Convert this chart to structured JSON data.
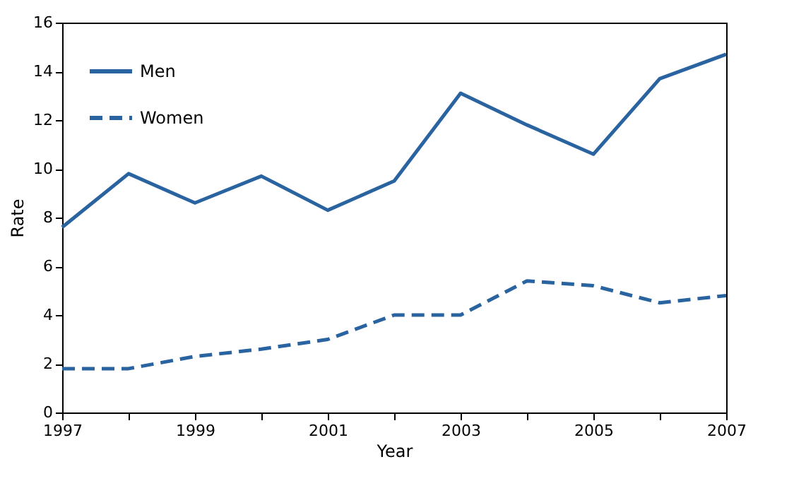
{
  "chart_data": {
    "type": "line",
    "xlabel": "Year",
    "ylabel": "Rate",
    "x": [
      1997,
      1998,
      1999,
      2000,
      2001,
      2002,
      2003,
      2004,
      2005,
      2006,
      2007
    ],
    "series": [
      {
        "name": "Men",
        "color": "#2a64a0",
        "line_style": "solid",
        "values": [
          7.6,
          9.8,
          8.6,
          9.7,
          8.3,
          9.5,
          13.1,
          11.8,
          10.6,
          13.7,
          14.7
        ]
      },
      {
        "name": "Women",
        "color": "#2a64a0",
        "line_style": "dashed",
        "values": [
          1.8,
          1.8,
          2.3,
          2.6,
          3.0,
          4.0,
          4.0,
          5.4,
          5.2,
          4.5,
          4.8
        ]
      }
    ],
    "xlim": [
      1997,
      2007
    ],
    "xticks": [
      1997,
      {
        "value": 1998,
        "label": null
      },
      1999,
      {
        "value": 2000,
        "label": null
      },
      2001,
      {
        "value": 2002,
        "label": null
      },
      2003,
      {
        "value": 2004,
        "label": null
      },
      2005,
      {
        "value": 2006,
        "label": null
      },
      2007
    ],
    "ylim": [
      0,
      16
    ],
    "yticks": [
      0,
      2,
      4,
      6,
      8,
      10,
      12,
      14,
      16
    ],
    "grid": false,
    "legend": "top left",
    "marker": "none"
  }
}
